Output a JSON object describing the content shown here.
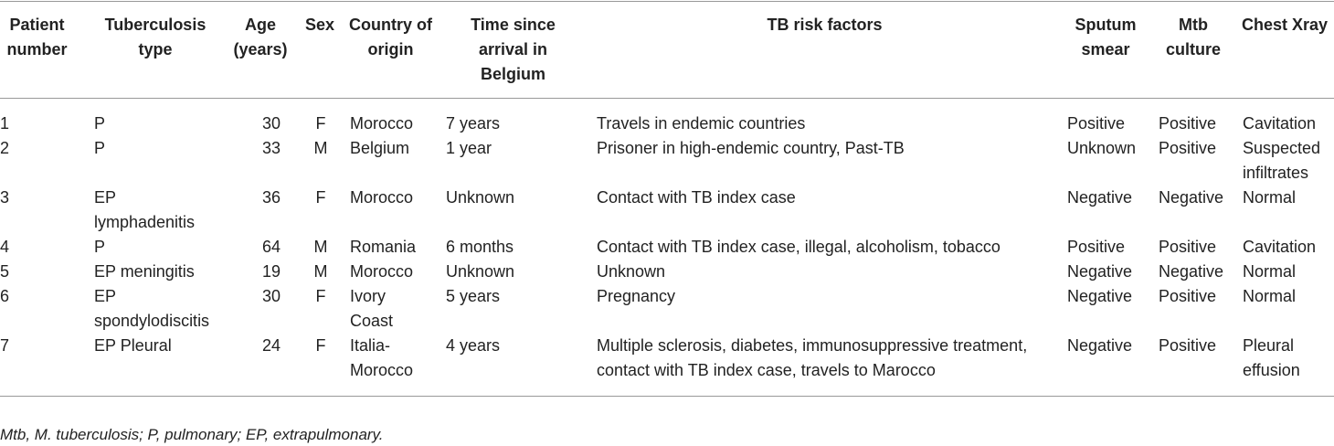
{
  "table": {
    "header": [
      "Patient number",
      "Tuberculosis type",
      "Age (years)",
      "Sex",
      "Country of origin",
      "Time since arrival in Belgium",
      "TB risk factors",
      "Sputum smear",
      "Mtb culture",
      "Chest Xray"
    ],
    "rows": [
      [
        "1",
        "P",
        "30",
        "F",
        "Morocco",
        "7 years",
        "Travels in endemic countries",
        "Positive",
        "Positive",
        "Cavitation"
      ],
      [
        "2",
        "P",
        "33",
        "M",
        "Belgium",
        "1 year",
        "Prisoner in high-endemic country, Past-TB",
        "Unknown",
        "Positive",
        "Suspected infiltrates"
      ],
      [
        "3",
        "EP lymphadenitis",
        "36",
        "F",
        "Morocco",
        "Unknown",
        "Contact with TB index case",
        "Negative",
        "Negative",
        "Normal"
      ],
      [
        "4",
        "P",
        "64",
        "M",
        "Romania",
        "6 months",
        "Contact with TB index case, illegal, alcoholism, tobacco",
        "Positive",
        "Positive",
        "Cavitation"
      ],
      [
        "5",
        "EP meningitis",
        "19",
        "M",
        "Morocco",
        "Unknown",
        "Unknown",
        "Negative",
        "Negative",
        "Normal"
      ],
      [
        "6",
        "EP spondylodiscitis",
        "30",
        "F",
        "Ivory Coast",
        "5 years",
        "Pregnancy",
        "Negative",
        "Positive",
        "Normal"
      ],
      [
        "7",
        "EP Pleural",
        "24",
        "F",
        "Italia-Morocco",
        "4 years",
        "Multiple sclerosis, diabetes, immunosuppressive treatment, contact with TB index case, travels to Marocco",
        "Negative",
        "Positive",
        "Pleural effusion"
      ]
    ],
    "footnote": "Mtb, M. tuberculosis; P, pulmonary; EP, extrapulmonary."
  }
}
